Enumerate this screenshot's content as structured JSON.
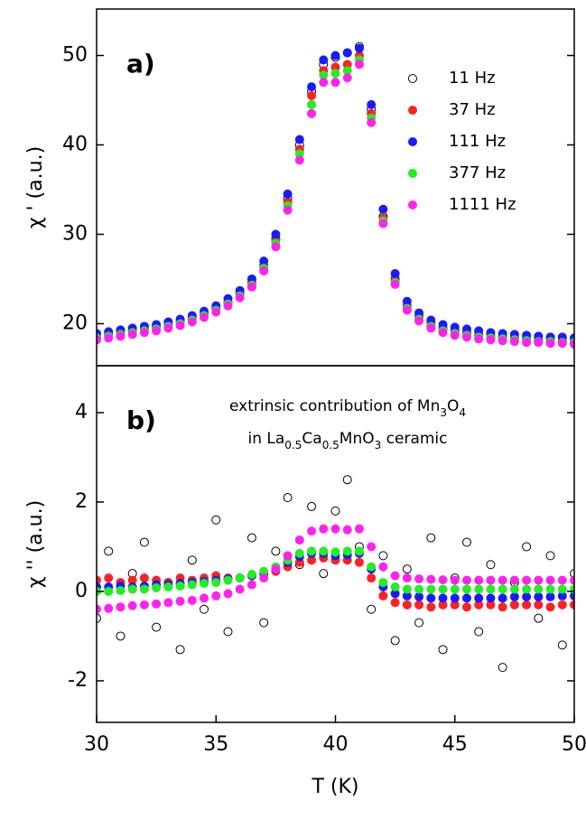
{
  "chart_data": [
    {
      "type": "scatter",
      "panel_label": "a)",
      "ylabel": "χ ' (a.u.)",
      "legend": "upper right",
      "xlim": [
        30,
        50
      ],
      "ylim": [
        15.3,
        55.2
      ],
      "yticks": [
        20,
        30,
        40,
        50
      ],
      "x": [
        30,
        30.5,
        31,
        31.5,
        32,
        32.5,
        33,
        33.5,
        34,
        34.5,
        35,
        35.5,
        36,
        36.5,
        37,
        37.5,
        38,
        38.5,
        39,
        39.5,
        40,
        40.5,
        41,
        41.5,
        42,
        42.5,
        43,
        43.5,
        44,
        44.5,
        45,
        45.5,
        46,
        46.5,
        47,
        47.5,
        48,
        48.5,
        49,
        49.5,
        50
      ],
      "series": [
        {
          "name": "11 Hz",
          "color": "#000000",
          "facecolor": "none",
          "values": [
            18.5,
            18.8,
            19.0,
            19.2,
            19.4,
            19.6,
            19.9,
            20.2,
            20.6,
            21.1,
            21.7,
            22.4,
            23.3,
            24.6,
            26.5,
            29.5,
            34,
            40,
            46,
            49,
            49.8,
            50.3,
            51,
            44,
            32,
            25,
            22,
            20.8,
            20,
            19.5,
            19.2,
            19,
            18.8,
            18.6,
            18.5,
            18.4,
            18.3,
            18.2,
            18.1,
            18,
            17.9
          ]
        },
        {
          "name": "37 Hz",
          "color": "#ff2020",
          "facecolor": "#ff2020",
          "values": [
            18.6,
            18.8,
            19.0,
            19.2,
            19.4,
            19.6,
            19.9,
            20.2,
            20.6,
            21.1,
            21.7,
            22.4,
            23.3,
            24.6,
            26.4,
            29.3,
            33.6,
            39.5,
            45.5,
            48.3,
            48.7,
            49,
            50,
            43.5,
            31.8,
            24.8,
            21.9,
            20.7,
            19.9,
            19.4,
            19.1,
            18.9,
            18.7,
            18.6,
            18.5,
            18.4,
            18.3,
            18.2,
            18.2,
            18.1,
            18.1
          ]
        },
        {
          "name": "111 Hz",
          "color": "#1a1aff",
          "facecolor": "#1a1aff",
          "values": [
            18.9,
            19.1,
            19.3,
            19.5,
            19.7,
            19.9,
            20.2,
            20.5,
            20.9,
            21.4,
            22.0,
            22.8,
            23.7,
            25.0,
            27.0,
            30.0,
            34.5,
            40.6,
            46.5,
            49.5,
            50,
            50.3,
            50.8,
            44.5,
            32.8,
            25.6,
            22.5,
            21.2,
            20.4,
            19.9,
            19.6,
            19.4,
            19.2,
            19.0,
            18.9,
            18.8,
            18.7,
            18.6,
            18.5,
            18.5,
            18.4
          ]
        },
        {
          "name": "377 Hz",
          "color": "#22ee22",
          "facecolor": "#22ee22",
          "values": [
            18.4,
            18.6,
            18.8,
            19.0,
            19.2,
            19.4,
            19.7,
            20.0,
            20.4,
            20.9,
            21.5,
            22.2,
            23.1,
            24.3,
            26.2,
            29.0,
            33.2,
            39,
            44.5,
            47.8,
            48,
            48.3,
            49.5,
            43,
            31.5,
            24.6,
            21.7,
            20.5,
            19.7,
            19.2,
            18.9,
            18.7,
            18.5,
            18.4,
            18.3,
            18.2,
            18.1,
            18,
            18,
            17.9,
            17.9
          ]
        },
        {
          "name": "1111 Hz",
          "color": "#ff22ee",
          "facecolor": "#ff22ee",
          "values": [
            18.2,
            18.4,
            18.6,
            18.8,
            19.0,
            19.2,
            19.5,
            19.8,
            20.2,
            20.7,
            21.3,
            22.0,
            22.9,
            24.1,
            25.9,
            28.6,
            32.7,
            38.3,
            43.5,
            47,
            47,
            47.5,
            49,
            42.5,
            31.2,
            24.4,
            21.5,
            20.3,
            19.5,
            19.0,
            18.7,
            18.5,
            18.3,
            18.2,
            18.1,
            18.0,
            17.9,
            17.9,
            17.8,
            17.8,
            17.7
          ]
        }
      ]
    },
    {
      "type": "scatter",
      "panel_label": "b)",
      "ylabel": "χ '' (a.u.)",
      "xlabel": "T (K)",
      "annotation": [
        [
          "extrinsic contribution of Mn",
          "3",
          "O",
          "4"
        ],
        [
          "in La",
          "0.5",
          "Ca",
          "0.5",
          "MnO",
          "3",
          " ceramic"
        ]
      ],
      "xlim": [
        30,
        50
      ],
      "xticks": [
        30,
        35,
        40,
        45,
        50
      ],
      "ylim": [
        -2.93,
        5.05
      ],
      "yticks": [
        -2,
        0,
        2,
        4
      ],
      "x": [
        30,
        30.5,
        31,
        31.5,
        32,
        32.5,
        33,
        33.5,
        34,
        34.5,
        35,
        35.5,
        36,
        36.5,
        37,
        37.5,
        38,
        38.5,
        39,
        39.5,
        40,
        40.5,
        41,
        41.5,
        42,
        42.5,
        43,
        43.5,
        44,
        44.5,
        45,
        45.5,
        46,
        46.5,
        47,
        47.5,
        48,
        48.5,
        49,
        49.5,
        50
      ],
      "series": [
        {
          "color": "#000000",
          "facecolor": "none",
          "values": [
            -0.6,
            0.9,
            -1.0,
            0.4,
            1.1,
            -0.8,
            0.2,
            -1.3,
            0.7,
            -0.4,
            1.6,
            -0.9,
            0.3,
            1.2,
            -0.7,
            0.9,
            2.1,
            0.6,
            1.9,
            0.4,
            1.8,
            2.5,
            1.0,
            -0.4,
            0.8,
            -1.1,
            0.5,
            -0.7,
            1.2,
            -1.3,
            0.3,
            1.1,
            -0.9,
            0.6,
            -1.7,
            0.2,
            1.0,
            -0.6,
            0.8,
            -1.2,
            0.4
          ]
        },
        {
          "color": "#ff2020",
          "facecolor": "#ff2020",
          "values": [
            0.25,
            0.3,
            0.2,
            0.25,
            0.3,
            0.25,
            0.2,
            0.3,
            0.25,
            0.3,
            0.35,
            0.3,
            0.3,
            0.35,
            0.4,
            0.45,
            0.55,
            0.65,
            0.7,
            0.75,
            0.7,
            0.7,
            0.65,
            0.3,
            -0.1,
            -0.25,
            -0.3,
            -0.3,
            -0.35,
            -0.3,
            -0.3,
            -0.35,
            -0.3,
            -0.3,
            -0.35,
            -0.3,
            -0.3,
            -0.3,
            -0.35,
            -0.3,
            -0.3
          ]
        },
        {
          "color": "#1a1aff",
          "facecolor": "#1a1aff",
          "values": [
            0.1,
            0.1,
            0.12,
            0.1,
            0.12,
            0.15,
            0.15,
            0.18,
            0.2,
            0.22,
            0.25,
            0.28,
            0.3,
            0.35,
            0.4,
            0.5,
            0.65,
            0.78,
            0.85,
            0.85,
            0.8,
            0.82,
            0.85,
            0.5,
            0.1,
            -0.05,
            -0.1,
            -0.12,
            -0.15,
            -0.15,
            -0.15,
            -0.15,
            -0.15,
            -0.15,
            -0.15,
            -0.12,
            -0.12,
            -0.12,
            -0.12,
            -0.1,
            -0.1
          ]
        },
        {
          "color": "#22ee22",
          "facecolor": "#22ee22",
          "values": [
            0,
            0,
            0.02,
            0.05,
            0.05,
            0.08,
            0.1,
            0.12,
            0.15,
            0.18,
            0.2,
            0.25,
            0.3,
            0.38,
            0.45,
            0.55,
            0.7,
            0.85,
            0.9,
            0.9,
            0.88,
            0.9,
            0.9,
            0.55,
            0.2,
            0.1,
            0.05,
            0.05,
            0.05,
            0.05,
            0.05,
            0.05,
            0.05,
            0.05,
            0.05,
            0.05,
            0.05,
            0.05,
            0.05,
            0.05,
            0.05
          ]
        },
        {
          "color": "#ff22ee",
          "facecolor": "#ff22ee",
          "values": [
            -0.4,
            -0.38,
            -0.35,
            -0.32,
            -0.3,
            -0.28,
            -0.25,
            -0.22,
            -0.2,
            -0.15,
            -0.1,
            -0.05,
            0.05,
            0.15,
            0.3,
            0.5,
            0.8,
            1.15,
            1.35,
            1.4,
            1.4,
            1.38,
            1.4,
            1.0,
            0.55,
            0.35,
            0.3,
            0.28,
            0.27,
            0.26,
            0.25,
            0.25,
            0.25,
            0.25,
            0.25,
            0.25,
            0.25,
            0.25,
            0.25,
            0.25,
            0.25
          ]
        }
      ]
    }
  ]
}
